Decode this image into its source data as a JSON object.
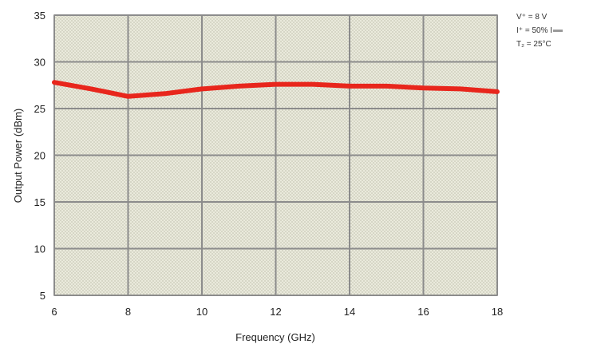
{
  "chart_data": {
    "type": "line",
    "title": "",
    "xlabel": "Frequency (GHz)",
    "ylabel": "Output Power (dBm)",
    "xlim": [
      6,
      18
    ],
    "ylim": [
      5,
      35
    ],
    "x_ticks": [
      "6",
      "8",
      "10",
      "12",
      "14",
      "16",
      "18"
    ],
    "y_ticks": [
      "5",
      "10",
      "15",
      "20",
      "25",
      "30",
      "35"
    ],
    "grid": true,
    "series": [
      {
        "color": "#e8261c",
        "x": [
          6,
          7,
          8,
          9,
          10,
          11,
          12,
          13,
          14,
          15,
          16,
          17,
          18
        ],
        "y": [
          27.8,
          27.1,
          26.3,
          26.6,
          27.1,
          27.4,
          27.6,
          27.6,
          27.4,
          27.4,
          27.2,
          27.1,
          26.8
        ]
      }
    ]
  },
  "conditions": {
    "line1": "V⁺ = 8 V",
    "line2": "I⁺ = 50% I",
    "line3": "T₂ = 25°C"
  }
}
